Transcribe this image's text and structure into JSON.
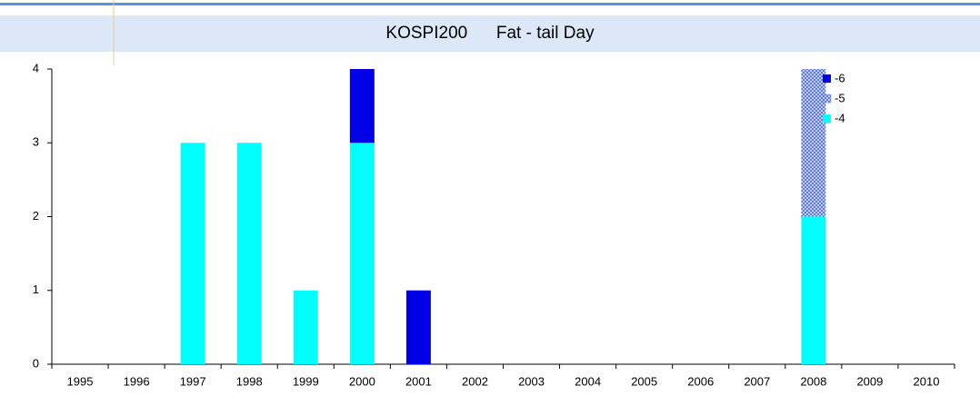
{
  "chart_data": {
    "type": "stacked-bar",
    "title": "KOSPI200      Fat - tail Day",
    "categories": [
      "1995",
      "1996",
      "1997",
      "1998",
      "1999",
      "2000",
      "2001",
      "2002",
      "2003",
      "2004",
      "2005",
      "2006",
      "2007",
      "2008",
      "2009",
      "2010"
    ],
    "series": [
      {
        "name": "-4",
        "color": "#00ffff",
        "values": [
          0,
          0,
          3,
          3,
          1,
          3,
          0,
          0,
          0,
          0,
          0,
          0,
          0,
          2,
          0,
          0
        ]
      },
      {
        "name": "-5",
        "color": "#5a78e8",
        "hatch": true,
        "values": [
          0,
          0,
          0,
          0,
          0,
          0,
          0,
          0,
          0,
          0,
          0,
          0,
          0,
          2,
          0,
          0
        ]
      },
      {
        "name": "-6",
        "color": "#0000e6",
        "values": [
          0,
          0,
          0,
          0,
          0,
          1,
          1,
          0,
          0,
          0,
          0,
          0,
          0,
          0,
          0,
          0
        ]
      }
    ],
    "ylim": [
      0,
      4
    ],
    "yticks": [
      0,
      1,
      2,
      3,
      4
    ],
    "legend": "upper right"
  }
}
